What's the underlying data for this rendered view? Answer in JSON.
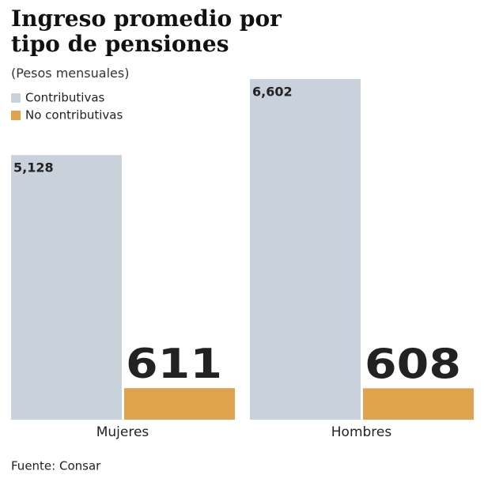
{
  "chart_data": {
    "type": "bar",
    "title": "Ingreso promedio por tipo de pensiones",
    "subtitle": "(Pesos mensuales)",
    "categories": [
      "Mujeres",
      "Hombres"
    ],
    "series": [
      {
        "name": "Contributivas",
        "color": "#c9d1db",
        "values": [
          5128,
          6602
        ],
        "value_labels": [
          "5,128",
          "6,602"
        ]
      },
      {
        "name": "No contributivas",
        "color": "#e1a24e",
        "values": [
          611,
          608
        ]
      }
    ],
    "source": "Fuente: Consar"
  }
}
